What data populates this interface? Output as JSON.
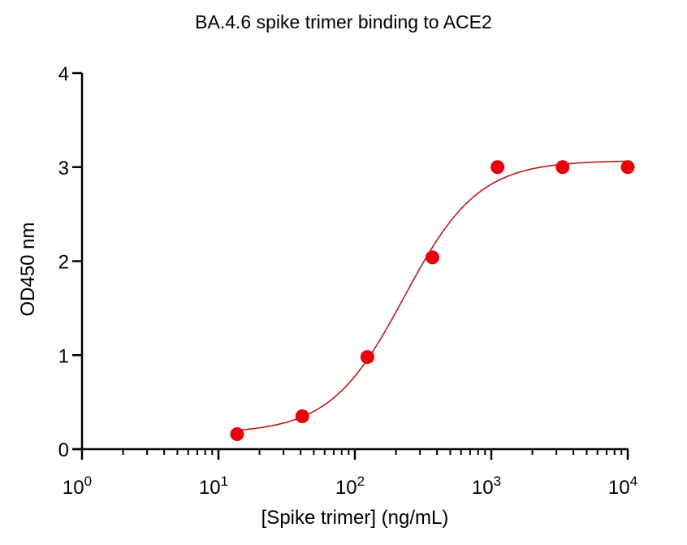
{
  "chart_data": {
    "type": "scatter",
    "title": "BA.4.6 spike trimer binding to ACE2",
    "xlabel": "[Spike trimer]  (ng/mL)",
    "ylabel": "OD450 nm",
    "xscale": "log",
    "xlim": [
      1,
      10000
    ],
    "ylim": [
      0,
      4
    ],
    "xticks": [
      "10^0",
      "10^1",
      "10^2",
      "10^3",
      "10^4"
    ],
    "yticks": [
      "0",
      "1",
      "2",
      "3",
      "4"
    ],
    "grid": false,
    "legend": null,
    "series": [
      {
        "name": "BA.4.6 spike trimer",
        "marker": "circle",
        "color": "#e8000b",
        "x": [
          13.7,
          41.2,
          123.5,
          370.4,
          1111.1,
          3333.3,
          10000
        ],
        "y": [
          0.16,
          0.35,
          0.98,
          2.04,
          3.0,
          3.0,
          3.0
        ]
      },
      {
        "name": "4PL fit",
        "type": "line",
        "color": "#c0181e",
        "model": "four-parameter logistic",
        "bottom": 0.17,
        "top": 3.07,
        "ec50": 230,
        "hill": 1.6
      }
    ]
  },
  "labels": {
    "title": "BA.4.6 spike trimer binding to ACE2",
    "xlabel": "[Spike trimer]  (ng/mL)",
    "ylabel": "OD450 nm"
  }
}
